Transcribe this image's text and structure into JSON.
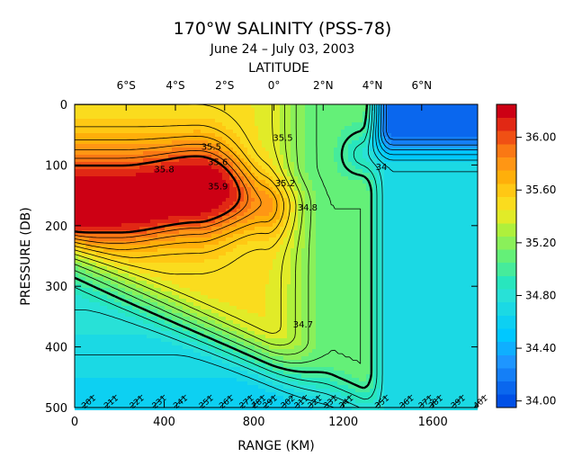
{
  "chart_data": {
    "type": "heatmap",
    "title": "170°W SALINITY (PSS-78)",
    "subtitle": "June 24 – July 03, 2003",
    "top_axis_label": "LATITUDE",
    "top_ticks": [
      "6°S",
      "4°S",
      "2°S",
      "0°",
      "2°N",
      "4°N",
      "6°N"
    ],
    "top_tick_positions_km": [
      230,
      450,
      670,
      890,
      1110,
      1330,
      1550
    ],
    "xlabel": "RANGE (KM)",
    "ylabel": "PRESSURE (DB)",
    "xlim": [
      0,
      1800
    ],
    "ylim": [
      0,
      500
    ],
    "x_ticks": [
      0,
      400,
      800,
      1200,
      1600
    ],
    "y_ticks": [
      0,
      100,
      200,
      300,
      400,
      500
    ],
    "colorbar_min": 33.95,
    "colorbar_max": 36.25,
    "colorbar_step": 0.1,
    "colorbar_ticks": [
      "34.00",
      "34.40",
      "34.80",
      "35.20",
      "35.60",
      "36.00"
    ],
    "colorbar_tick_values": [
      34.0,
      34.4,
      34.8,
      35.2,
      35.6,
      36.0
    ],
    "contour_labels": [
      {
        "text": "35.5",
        "x": 610,
        "y": 75
      },
      {
        "text": "35.6",
        "x": 640,
        "y": 100
      },
      {
        "text": "35.8",
        "x": 400,
        "y": 112
      },
      {
        "text": "35.9",
        "x": 640,
        "y": 140
      },
      {
        "text": "35.5",
        "x": 930,
        "y": 60
      },
      {
        "text": "35.2",
        "x": 940,
        "y": 135
      },
      {
        "text": "34.8",
        "x": 1040,
        "y": 175
      },
      {
        "text": "34.7",
        "x": 1020,
        "y": 368
      },
      {
        "text": "34",
        "x": 1370,
        "y": 108
      }
    ],
    "stations": [
      "201",
      "211",
      "221",
      "231",
      "241",
      "251",
      "261",
      "271",
      "281",
      "291",
      "302",
      "311",
      "321",
      "331",
      "341",
      "351",
      "361",
      "371",
      "381",
      "391",
      "401"
    ],
    "station_positions_km": [
      70,
      170,
      285,
      385,
      480,
      595,
      685,
      775,
      830,
      880,
      960,
      1020,
      1080,
      1150,
      1220,
      1380,
      1490,
      1575,
      1620,
      1720,
      1820
    ]
  }
}
